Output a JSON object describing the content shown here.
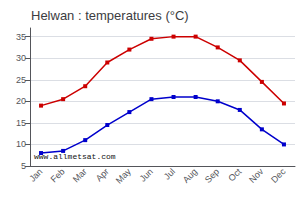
{
  "chart_data": {
    "type": "line",
    "title": "Helwan : temperatures (°C)",
    "categories": [
      "Jan",
      "Feb",
      "Mar",
      "Apr",
      "May",
      "Jun",
      "Jul",
      "Aug",
      "Sep",
      "Oct",
      "Nov",
      "Dec"
    ],
    "series": [
      {
        "color": "#cc0000",
        "values": [
          19,
          20.5,
          23.5,
          29,
          32,
          34.5,
          35,
          35,
          32.5,
          29.5,
          24.5,
          19.5
        ]
      },
      {
        "color": "#0000cc",
        "values": [
          8,
          8.5,
          11,
          14.5,
          17.5,
          20.5,
          21,
          21,
          20,
          18,
          13.5,
          10
        ]
      }
    ],
    "marker": "square",
    "ylim": [
      5,
      37
    ],
    "yticks": [
      5,
      10,
      15,
      20,
      25,
      30,
      35
    ],
    "grid": true,
    "annotations": [
      "www.allmetsat.com"
    ]
  }
}
